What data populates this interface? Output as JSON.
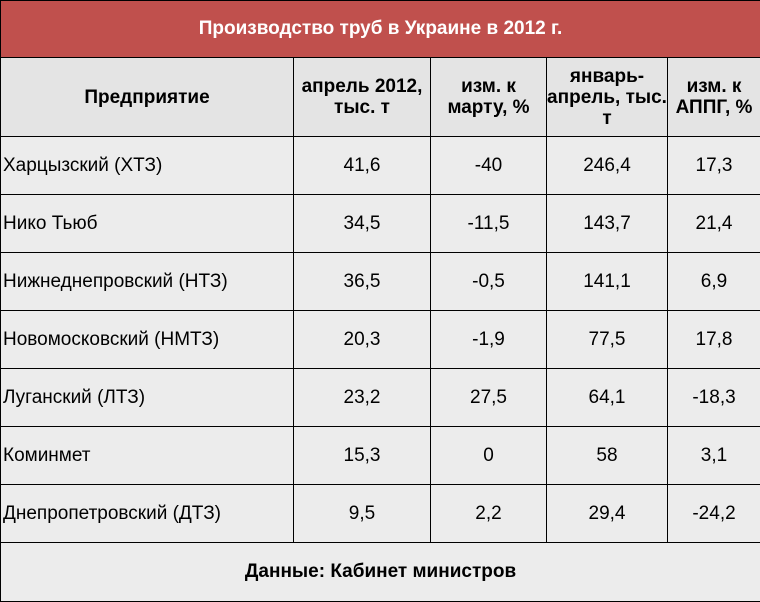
{
  "chart_data": {
    "type": "table",
    "title": "Производство труб в Украине в 2012 г.",
    "columns": [
      "Предприятие",
      "апрель 2012, тыс. т",
      "изм. к марту, %",
      "январь-апрель, тыс. т",
      "изм. к АППГ, %"
    ],
    "rows": [
      [
        "Харцызский (ХТЗ)",
        "41,6",
        "-40",
        "246,4",
        "17,3"
      ],
      [
        "Нико Тьюб",
        "34,5",
        "-11,5",
        "143,7",
        "21,4"
      ],
      [
        "Нижнеднепровский (НТЗ)",
        "36,5",
        "-0,5",
        "141,1",
        "6,9"
      ],
      [
        "Новомосковский (НМТЗ)",
        "20,3",
        "-1,9",
        "77,5",
        "17,8"
      ],
      [
        "Луганский (ЛТЗ)",
        "23,2",
        "27,5",
        "64,1",
        "-18,3"
      ],
      [
        "Коминмет",
        "15,3",
        "0",
        "58",
        "3,1"
      ],
      [
        "Днепропетровский (ДТЗ)",
        "9,5",
        "2,2",
        "29,4",
        "-24,2"
      ]
    ],
    "footer": "Данные: Кабинет министров"
  },
  "colors": {
    "title_bg": "#c0504d",
    "title_text": "#ffffff",
    "header_bg": "#e4e4e4",
    "row_bg": "#ececec"
  }
}
